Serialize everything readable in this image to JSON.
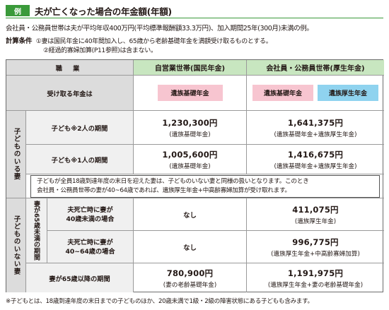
{
  "header": {
    "tag": "例",
    "title": "夫が亡くなった場合の年金額(年額)"
  },
  "description": "会社員・公務員世帯は夫が平均年収400万円(平均標準報酬額33.3万円)、加入期間25年(300月)未満の例。",
  "conditions": {
    "label": "計算条件",
    "item1": "①妻は国民年金に40年間加入し、65歳から老齢基礎年金を満額受け取るものとする。",
    "item2": "②経過的寡婦加算(P11参照)は含まない。"
  },
  "table": {
    "col_occupation": "職 業",
    "col_self": "自営業世帯(国民年金)",
    "col_company": "会社員・公務員世帯(厚生年金)",
    "row_receive": "受け取る年金は",
    "pill_basic": "遺族基礎年金",
    "pill_basic2": "遺族基礎年金",
    "pill_employee": "遺族厚生年金",
    "group_with_children": "子どものいる妻",
    "row_two_children": "子ども※2人の期間",
    "self_two": "1,230,300円",
    "self_two_note": "(遺族基礎年金)",
    "comp_two": "1,641,375円",
    "comp_two_note": "(遺族基礎年金+遺族厚生年金)",
    "row_one_child": "子ども※1人の期間",
    "self_one": "1,005,600円",
    "self_one_note": "(遺族基礎年金)",
    "comp_one": "1,416,675円",
    "comp_one_note": "(遺族基礎年金+遺族厚生年金)",
    "note_line1": "子どもが全員18歳到達年度の末日を迎えた妻は、子どものいない妻と同様の扱いとなります。このとき",
    "note_line2": "会社員・公務員世帯の妻が40~64歳であれば、遺族厚生年金+中高齢寡婦加算が受け取れます。",
    "group_without_children": "子どものいない妻",
    "sub_group": "妻が65歳未満の期間",
    "row_under40": "夫死亡時に妻が40歳未満の場合",
    "row_under40_l1": "夫死亡時に妻が",
    "row_under40_l2": "40歳未満の場合",
    "self_under40": "なし",
    "comp_under40": "411,075円",
    "comp_under40_note": "(遺族厚生年金)",
    "row_40_64_l1": "夫死亡時に妻が",
    "row_40_64_l2": "40~64歳の場合",
    "self_40_64": "なし",
    "comp_40_64": "996,775円",
    "comp_40_64_note": "(遺族厚生年金+中高齢寡婦加算)",
    "row_over65": "妻が65歳以降の期間",
    "self_over65": "780,900円",
    "self_over65_note": "(妻の老齢基礎年金)",
    "comp_over65": "1,191,975円",
    "comp_over65_note": "(遺族厚生年金+妻の老齢基礎年金)"
  },
  "footnote": "※子どもとは、18歳到達年度の末日までの子どものほか、20歳未満で1級・2級の障害状態にある子どもも含みます。",
  "colors": {
    "accent_green": "#3a9a3a",
    "header_green": "#c8e6c0",
    "pink": "#f7c5d0",
    "blue": "#8fd3ef",
    "gray": "#dcdcdc"
  }
}
